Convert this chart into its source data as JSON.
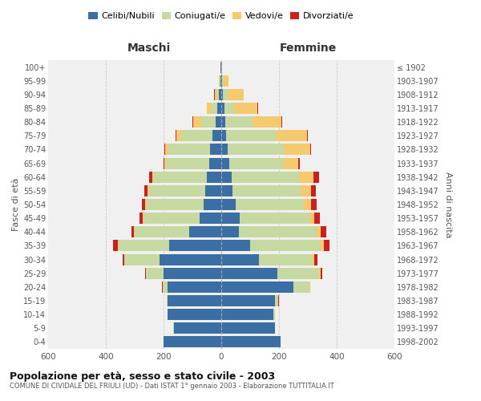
{
  "age_groups": [
    "0-4",
    "5-9",
    "10-14",
    "15-19",
    "20-24",
    "25-29",
    "30-34",
    "35-39",
    "40-44",
    "45-49",
    "50-54",
    "55-59",
    "60-64",
    "65-69",
    "70-74",
    "75-79",
    "80-84",
    "85-89",
    "90-94",
    "95-99",
    "100+"
  ],
  "birth_years": [
    "1998-2002",
    "1993-1997",
    "1988-1992",
    "1983-1987",
    "1978-1982",
    "1973-1977",
    "1968-1972",
    "1963-1967",
    "1958-1962",
    "1953-1957",
    "1948-1952",
    "1943-1947",
    "1938-1942",
    "1933-1937",
    "1928-1932",
    "1923-1927",
    "1918-1922",
    "1913-1917",
    "1908-1912",
    "1903-1907",
    "≤ 1902"
  ],
  "maschi": {
    "celibe": [
      200,
      165,
      185,
      185,
      185,
      200,
      215,
      180,
      110,
      75,
      60,
      55,
      50,
      42,
      38,
      30,
      20,
      14,
      8,
      4,
      2
    ],
    "coniugato": [
      0,
      1,
      2,
      4,
      18,
      60,
      120,
      175,
      190,
      195,
      200,
      195,
      185,
      150,
      145,
      110,
      50,
      20,
      10,
      2,
      0
    ],
    "vedovo": [
      0,
      0,
      0,
      0,
      1,
      1,
      2,
      2,
      2,
      2,
      3,
      5,
      5,
      5,
      12,
      15,
      28,
      15,
      5,
      1,
      0
    ],
    "divorziato": [
      0,
      0,
      0,
      0,
      1,
      3,
      5,
      18,
      10,
      12,
      12,
      12,
      10,
      3,
      2,
      2,
      2,
      1,
      1,
      0,
      0
    ]
  },
  "femmine": {
    "celibe": [
      205,
      185,
      180,
      185,
      250,
      195,
      130,
      100,
      60,
      65,
      50,
      40,
      35,
      28,
      22,
      18,
      14,
      10,
      5,
      2,
      1
    ],
    "coniugata": [
      0,
      2,
      5,
      12,
      55,
      145,
      185,
      245,
      270,
      240,
      235,
      235,
      235,
      185,
      195,
      175,
      95,
      35,
      18,
      5,
      0
    ],
    "vedova": [
      0,
      0,
      0,
      1,
      2,
      5,
      8,
      10,
      15,
      18,
      25,
      35,
      50,
      55,
      90,
      105,
      100,
      80,
      55,
      18,
      2
    ],
    "divorziata": [
      0,
      0,
      0,
      1,
      2,
      5,
      10,
      20,
      20,
      18,
      20,
      18,
      18,
      5,
      5,
      3,
      2,
      2,
      1,
      0,
      0
    ]
  },
  "colors": {
    "celibe": "#3a6ea5",
    "coniugato": "#c5d9a0",
    "vedovo": "#f5c96e",
    "divorziato": "#cc1f1f"
  },
  "title": "Popolazione per età, sesso e stato civile - 2003",
  "subtitle": "COMUNE DI CIVIDALE DEL FRIULI (UD) - Dati ISTAT 1° gennaio 2003 - Elaborazione TUTTITALIA.IT",
  "xlabel_left": "Maschi",
  "xlabel_right": "Femmine",
  "ylabel_left": "Fasce di età",
  "ylabel_right": "Anni di nascita",
  "xlim": 600,
  "legend_labels": [
    "Celibi/Nubili",
    "Coniugati/e",
    "Vedovi/e",
    "Divorziati/e"
  ],
  "background_color": "#ffffff",
  "grid_color": "#cccccc"
}
